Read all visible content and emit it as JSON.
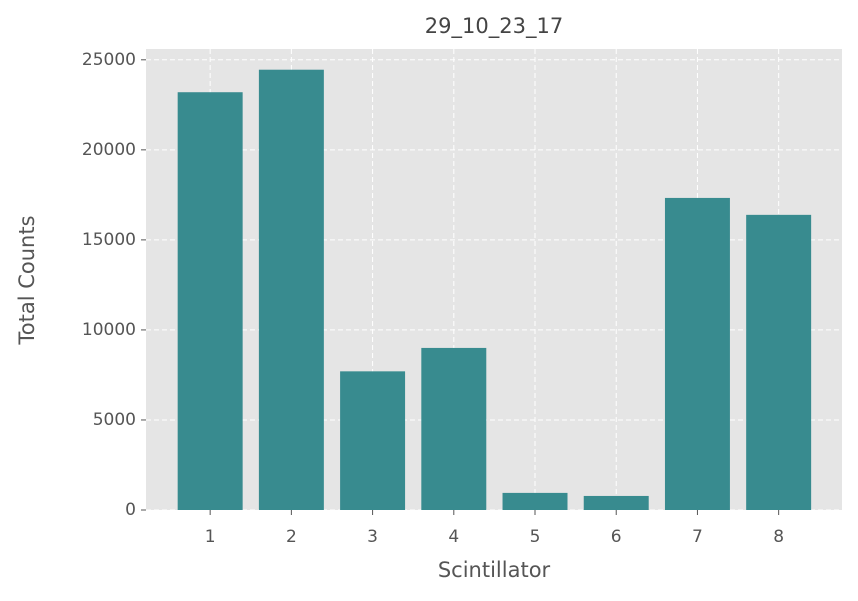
{
  "chart_data": {
    "type": "bar",
    "title": "29_10_23_17",
    "x_label": "Scintillator",
    "y_label": "Total Counts",
    "x": [
      1,
      2,
      3,
      4,
      5,
      6,
      7,
      8
    ],
    "values": [
      23200,
      24450,
      7700,
      9000,
      950,
      780,
      17330,
      16390
    ],
    "bar_width": 0.8,
    "color": "#388b8f",
    "xlim": [
      0.21,
      8.78
    ],
    "xticks": [
      1,
      2,
      3,
      4,
      5,
      6,
      7,
      8
    ],
    "ylim": [
      0,
      25600
    ],
    "yticks": [
      0,
      5000,
      10000,
      15000,
      20000,
      25000
    ],
    "grid": true
  }
}
